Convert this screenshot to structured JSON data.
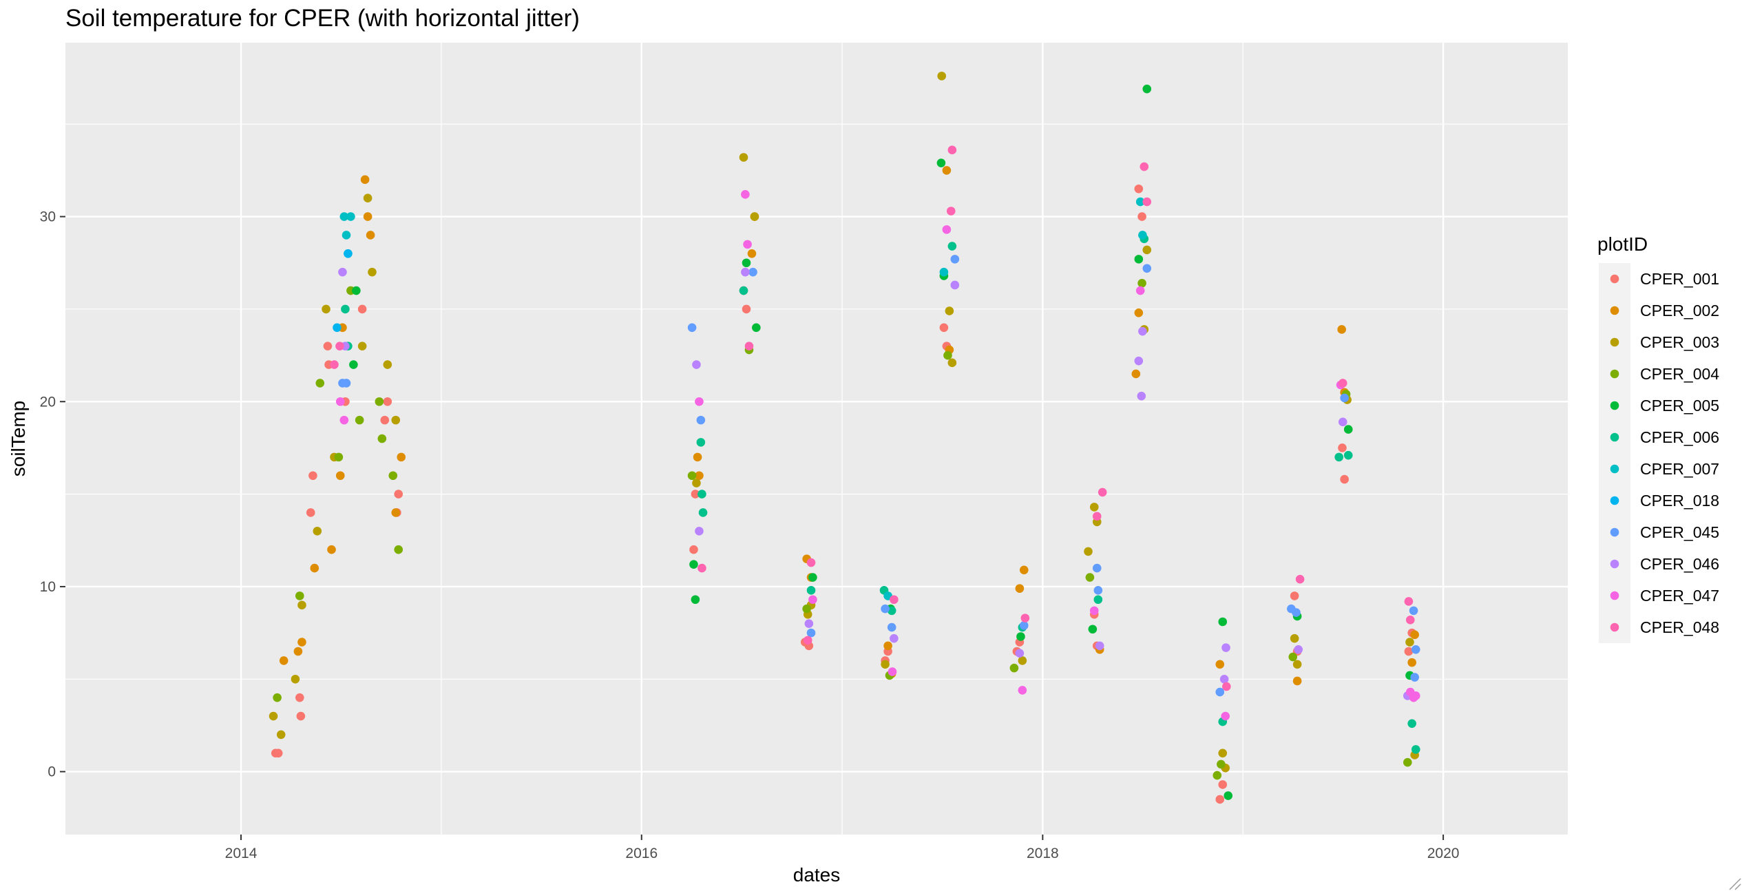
{
  "chart_data": {
    "type": "scatter",
    "title": "Soil temperature for CPER (with horizontal jitter)",
    "xlabel": "dates",
    "ylabel": "soilTemp",
    "x_type": "date",
    "xlim": [
      "2013-02-15",
      "2020-08-15"
    ],
    "ylim": [
      -3.4,
      39.4
    ],
    "x_ticks": [
      "2014-01-01",
      "2016-01-01",
      "2018-01-01",
      "2020-01-01"
    ],
    "x_tick_labels": [
      "2014",
      "2016",
      "2018",
      "2020"
    ],
    "y_ticks": [
      0,
      10,
      20,
      30
    ],
    "y_tick_labels": [
      "0",
      "10",
      "20",
      "30"
    ],
    "grid": true,
    "legend": {
      "title": "plotID",
      "position": "right"
    },
    "series": [
      {
        "name": "CPER_001",
        "color": "#F8766D",
        "points": [
          [
            "2014-03-05",
            1
          ],
          [
            "2014-03-10",
            1
          ],
          [
            "2014-04-20",
            3
          ],
          [
            "2014-04-18",
            4
          ],
          [
            "2014-05-08",
            14
          ],
          [
            "2014-05-12",
            16
          ],
          [
            "2014-06-10",
            22
          ],
          [
            "2014-06-08",
            23
          ],
          [
            "2014-07-10",
            20
          ],
          [
            "2014-08-10",
            25
          ],
          [
            "2014-09-20",
            19
          ],
          [
            "2014-09-25",
            20
          ],
          [
            "2014-10-12",
            14
          ],
          [
            "2014-10-15",
            15
          ],
          [
            "2016-04-05",
            12
          ],
          [
            "2016-04-08",
            15
          ],
          [
            "2016-07-05",
            26
          ],
          [
            "2016-07-10",
            25
          ],
          [
            "2016-10-25",
            7
          ],
          [
            "2016-11-01",
            6.8
          ],
          [
            "2017-03-20",
            6
          ],
          [
            "2017-03-25",
            6.5
          ],
          [
            "2017-07-05",
            24
          ],
          [
            "2017-07-10",
            23
          ],
          [
            "2017-11-15",
            6.5
          ],
          [
            "2017-11-20",
            7
          ],
          [
            "2018-04-05",
            8.5
          ],
          [
            "2018-04-10",
            6.8
          ],
          [
            "2018-06-25",
            31.5
          ],
          [
            "2018-07-01",
            30
          ],
          [
            "2018-11-20",
            -1.5
          ],
          [
            "2018-11-25",
            -0.7
          ],
          [
            "2019-04-05",
            9.5
          ],
          [
            "2019-04-10",
            6.5
          ],
          [
            "2019-07-01",
            17.5
          ],
          [
            "2019-07-05",
            15.8
          ],
          [
            "2019-10-30",
            6.5
          ],
          [
            "2019-11-05",
            7.5
          ]
        ]
      },
      {
        "name": "CPER_002",
        "color": "#DE8C00",
        "points": [
          [
            "2014-03-20",
            6
          ],
          [
            "2014-04-15",
            6.5
          ],
          [
            "2014-04-22",
            7
          ],
          [
            "2014-05-15",
            11
          ],
          [
            "2014-06-15",
            12
          ],
          [
            "2014-07-01",
            16
          ],
          [
            "2014-07-05",
            24
          ],
          [
            "2014-08-15",
            32
          ],
          [
            "2014-08-20",
            30
          ],
          [
            "2014-08-25",
            29
          ],
          [
            "2014-10-20",
            17
          ],
          [
            "2014-10-10",
            14
          ],
          [
            "2016-04-12",
            17
          ],
          [
            "2016-04-15",
            16
          ],
          [
            "2016-07-25",
            30
          ],
          [
            "2016-07-20",
            28
          ],
          [
            "2016-10-28",
            11.5
          ],
          [
            "2016-11-05",
            10.5
          ],
          [
            "2017-03-25",
            6.8
          ],
          [
            "2017-04-01",
            5.3
          ],
          [
            "2017-07-10",
            32.5
          ],
          [
            "2017-07-15",
            22.8
          ],
          [
            "2017-11-20",
            9.9
          ],
          [
            "2017-11-28",
            10.9
          ],
          [
            "2018-04-15",
            6.6
          ],
          [
            "2018-06-20",
            21.5
          ],
          [
            "2018-06-25",
            24.8
          ],
          [
            "2018-11-20",
            5.8
          ],
          [
            "2019-04-10",
            4.9
          ],
          [
            "2019-06-30",
            23.9
          ],
          [
            "2019-07-05",
            20.5
          ],
          [
            "2019-11-05",
            5.9
          ],
          [
            "2019-11-10",
            7.4
          ]
        ]
      },
      {
        "name": "CPER_003",
        "color": "#B79F00",
        "points": [
          [
            "2014-03-01",
            3
          ],
          [
            "2014-03-15",
            2
          ],
          [
            "2014-04-10",
            5
          ],
          [
            "2014-04-22",
            9
          ],
          [
            "2014-05-20",
            13
          ],
          [
            "2014-06-05",
            25
          ],
          [
            "2014-06-20",
            17
          ],
          [
            "2014-08-10",
            23
          ],
          [
            "2014-08-28",
            27
          ],
          [
            "2014-09-25",
            22
          ],
          [
            "2014-10-10",
            19
          ],
          [
            "2014-08-20",
            31
          ],
          [
            "2016-04-10",
            15.6
          ],
          [
            "2016-07-05",
            33.2
          ],
          [
            "2016-07-25",
            30
          ],
          [
            "2016-10-30",
            8.5
          ],
          [
            "2016-11-05",
            9
          ],
          [
            "2017-03-20",
            5.8
          ],
          [
            "2017-07-01",
            37.6
          ],
          [
            "2017-07-15",
            24.9
          ],
          [
            "2017-07-20",
            22.1
          ],
          [
            "2017-11-25",
            6
          ],
          [
            "2018-03-25",
            11.9
          ],
          [
            "2018-04-05",
            14.3
          ],
          [
            "2018-04-10",
            13.5
          ],
          [
            "2018-07-10",
            28.2
          ],
          [
            "2018-07-05",
            23.9
          ],
          [
            "2018-11-25",
            1
          ],
          [
            "2018-11-30",
            0.2
          ],
          [
            "2019-04-05",
            7.2
          ],
          [
            "2019-04-10",
            5.8
          ],
          [
            "2019-07-10",
            20.1
          ],
          [
            "2019-11-01",
            7
          ],
          [
            "2019-11-10",
            0.9
          ]
        ]
      },
      {
        "name": "CPER_004",
        "color": "#7CAE00",
        "points": [
          [
            "2014-03-08",
            4
          ],
          [
            "2014-04-18",
            9.5
          ],
          [
            "2014-05-25",
            21
          ],
          [
            "2014-06-28",
            17
          ],
          [
            "2014-07-20",
            26
          ],
          [
            "2014-08-05",
            19
          ],
          [
            "2014-09-10",
            20
          ],
          [
            "2014-10-05",
            16
          ],
          [
            "2014-10-15",
            12
          ],
          [
            "2014-09-15",
            18
          ],
          [
            "2016-04-02",
            16
          ],
          [
            "2016-07-15",
            22.8
          ],
          [
            "2016-10-28",
            8.8
          ],
          [
            "2017-03-28",
            5.2
          ],
          [
            "2017-07-12",
            22.5
          ],
          [
            "2017-11-10",
            5.6
          ],
          [
            "2018-03-28",
            10.5
          ],
          [
            "2018-07-01",
            26.4
          ],
          [
            "2018-11-22",
            0.4
          ],
          [
            "2018-11-15",
            -0.2
          ],
          [
            "2019-04-02",
            6.2
          ],
          [
            "2019-07-08",
            20.4
          ],
          [
            "2019-10-28",
            0.5
          ]
        ]
      },
      {
        "name": "CPER_005",
        "color": "#00BA38",
        "points": [
          [
            "2014-07-25",
            22
          ],
          [
            "2014-07-30",
            26
          ],
          [
            "2016-04-05",
            11.2
          ],
          [
            "2016-04-08",
            9.3
          ],
          [
            "2016-07-10",
            27.5
          ],
          [
            "2016-07-28",
            24
          ],
          [
            "2016-11-08",
            10.5
          ],
          [
            "2017-03-30",
            8.8
          ],
          [
            "2017-06-30",
            32.9
          ],
          [
            "2017-07-05",
            26.8
          ],
          [
            "2017-11-22",
            7.3
          ],
          [
            "2018-04-02",
            7.7
          ],
          [
            "2018-06-25",
            27.7
          ],
          [
            "2018-07-10",
            36.9
          ],
          [
            "2018-11-25",
            8.1
          ],
          [
            "2018-12-05",
            -1.3
          ],
          [
            "2019-04-10",
            8.4
          ],
          [
            "2019-07-12",
            18.5
          ],
          [
            "2019-11-01",
            5.2
          ]
        ]
      },
      {
        "name": "CPER_006",
        "color": "#00C08B",
        "points": [
          [
            "2014-07-10",
            25
          ],
          [
            "2014-07-15",
            23
          ],
          [
            "2016-04-20",
            15
          ],
          [
            "2016-04-22",
            14
          ],
          [
            "2016-04-18",
            17.8
          ],
          [
            "2016-07-05",
            26
          ],
          [
            "2016-11-05",
            9.8
          ],
          [
            "2017-03-18",
            9.8
          ],
          [
            "2017-04-01",
            8.7
          ],
          [
            "2017-07-20",
            28.4
          ],
          [
            "2017-11-25",
            7.8
          ],
          [
            "2018-04-12",
            9.3
          ],
          [
            "2018-07-05",
            28.8
          ],
          [
            "2018-11-25",
            2.7
          ],
          [
            "2019-06-25",
            17
          ],
          [
            "2019-07-12",
            17.1
          ],
          [
            "2019-11-05",
            2.6
          ],
          [
            "2019-11-12",
            1.2
          ]
        ]
      },
      {
        "name": "CPER_007",
        "color": "#00BFC4",
        "points": [
          [
            "2014-07-08",
            30
          ],
          [
            "2014-07-12",
            29
          ],
          [
            "2014-07-15",
            28
          ],
          [
            "2014-07-20",
            30
          ],
          [
            "2017-03-25",
            9.5
          ],
          [
            "2017-07-05",
            27
          ],
          [
            "2018-06-28",
            30.8
          ],
          [
            "2018-07-02",
            29
          ]
        ]
      },
      {
        "name": "CPER_018",
        "color": "#00B4F0",
        "points": [
          [
            "2014-06-25",
            24
          ],
          [
            "2014-07-15",
            28
          ]
        ]
      },
      {
        "name": "CPER_045",
        "color": "#619CFF",
        "points": [
          [
            "2014-07-05",
            21
          ],
          [
            "2014-07-12",
            21
          ],
          [
            "2016-04-02",
            24
          ],
          [
            "2016-04-18",
            19
          ],
          [
            "2016-07-22",
            27
          ],
          [
            "2016-11-05",
            7.5
          ],
          [
            "2017-03-20",
            8.8
          ],
          [
            "2017-04-01",
            7.8
          ],
          [
            "2017-07-25",
            27.7
          ],
          [
            "2017-11-28",
            7.9
          ],
          [
            "2018-04-10",
            11
          ],
          [
            "2018-04-12",
            9.8
          ],
          [
            "2018-07-10",
            27.2
          ],
          [
            "2018-11-20",
            4.3
          ],
          [
            "2019-03-30",
            8.8
          ],
          [
            "2019-04-08",
            8.6
          ],
          [
            "2019-07-05",
            20.2
          ],
          [
            "2019-11-08",
            8.7
          ],
          [
            "2019-11-12",
            6.6
          ],
          [
            "2019-11-10",
            5.1
          ]
        ]
      },
      {
        "name": "CPER_046",
        "color": "#B983FF",
        "points": [
          [
            "2014-07-05",
            27
          ],
          [
            "2014-07-10",
            23
          ],
          [
            "2016-04-10",
            22
          ],
          [
            "2016-04-15",
            13
          ],
          [
            "2016-07-08",
            27
          ],
          [
            "2016-11-01",
            8
          ],
          [
            "2017-04-05",
            7.2
          ],
          [
            "2017-07-25",
            26.3
          ],
          [
            "2017-11-20",
            6.4
          ],
          [
            "2018-04-15",
            6.8
          ],
          [
            "2018-06-25",
            22.2
          ],
          [
            "2018-06-30",
            20.3
          ],
          [
            "2018-07-02",
            23.8
          ],
          [
            "2018-11-28",
            5
          ],
          [
            "2018-12-01",
            6.7
          ],
          [
            "2019-04-12",
            6.6
          ],
          [
            "2019-07-02",
            18.9
          ],
          [
            "2019-10-28",
            4.1
          ]
        ]
      },
      {
        "name": "CPER_047",
        "color": "#F564E3",
        "points": [
          [
            "2014-07-01",
            20
          ],
          [
            "2014-07-08",
            19
          ],
          [
            "2016-04-15",
            20
          ],
          [
            "2016-07-08",
            31.2
          ],
          [
            "2016-07-12",
            28.5
          ],
          [
            "2016-11-08",
            9.3
          ],
          [
            "2017-04-02",
            5.4
          ],
          [
            "2017-07-10",
            29.3
          ],
          [
            "2017-11-25",
            4.4
          ],
          [
            "2018-04-05",
            8.7
          ],
          [
            "2018-06-28",
            26
          ],
          [
            "2018-11-30",
            3
          ],
          [
            "2019-06-28",
            20.9
          ],
          [
            "2019-11-02",
            4.3
          ],
          [
            "2019-11-08",
            4
          ],
          [
            "2019-11-12",
            4.1
          ]
        ]
      },
      {
        "name": "CPER_048",
        "color": "#FF64B0",
        "points": [
          [
            "2014-06-20",
            22
          ],
          [
            "2014-06-30",
            23
          ],
          [
            "2016-04-20",
            11
          ],
          [
            "2016-07-15",
            23
          ],
          [
            "2016-10-30",
            7.1
          ],
          [
            "2016-11-05",
            11.3
          ],
          [
            "2017-04-05",
            9.3
          ],
          [
            "2017-07-20",
            33.6
          ],
          [
            "2017-07-18",
            30.3
          ],
          [
            "2017-11-30",
            8.3
          ],
          [
            "2018-04-20",
            15.1
          ],
          [
            "2018-04-10",
            13.8
          ],
          [
            "2018-07-05",
            32.7
          ],
          [
            "2018-07-10",
            30.8
          ],
          [
            "2018-12-02",
            4.6
          ],
          [
            "2019-04-15",
            10.4
          ],
          [
            "2019-07-02",
            21
          ],
          [
            "2019-10-30",
            9.2
          ],
          [
            "2019-11-02",
            8.2
          ]
        ]
      }
    ]
  }
}
